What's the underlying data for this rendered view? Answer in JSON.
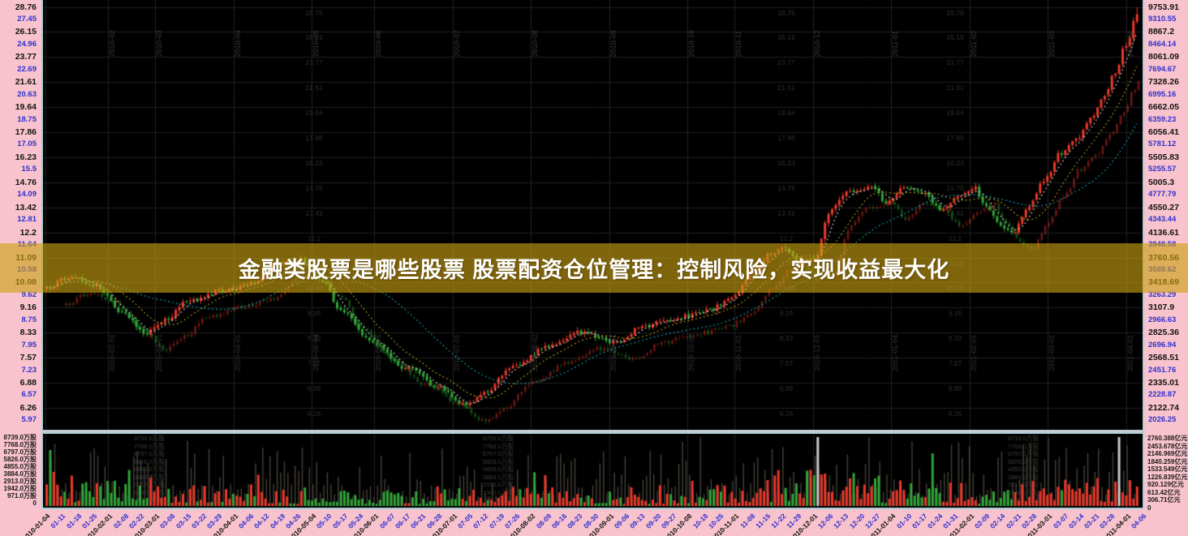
{
  "banner": {
    "text": "金融类股票是哪些股票 股票配资仓位管理：控制风险，实现收益最大化",
    "bg_color": "#cba211",
    "text_color": "#ffffff"
  },
  "colors": {
    "background_pink": "#f8c3cd",
    "panel_black": "#000000",
    "panel_border_blue": "#a9cdd9",
    "candle_up_red": "#e8382a",
    "candle_down_green": "#2fa436",
    "ma_short_white": "#e2e2e2",
    "ma_mid_yellow": "#bfae1e",
    "ma_long_cyan": "#19aec0",
    "axis_label_black": "#141414",
    "axis_label_blue": "#3030cf",
    "grid_line": "#1f1f1f"
  },
  "left_price_axis": {
    "labels": [
      "28.76",
      "27.45",
      "26.15",
      "24.96",
      "23.77",
      "22.69",
      "21.61",
      "20.63",
      "19.64",
      "18.75",
      "17.86",
      "17.05",
      "16.23",
      "15.5",
      "14.76",
      "14.09",
      "13.42",
      "12.81",
      "12.2",
      "11.64",
      "11.09",
      "10.58",
      "10.08",
      "9.62",
      "9.16",
      "8.75",
      "8.33",
      "7.95",
      "7.57",
      "7.23",
      "6.88",
      "6.57",
      "6.26",
      "5.97"
    ]
  },
  "right_price_axis": {
    "labels": [
      "9753.91",
      "9310.55",
      "8867.2",
      "8464.14",
      "8061.09",
      "7694.67",
      "7328.26",
      "6995.16",
      "6662.05",
      "6359.23",
      "6056.41",
      "5781.12",
      "5505.83",
      "5255.57",
      "5005.3",
      "4777.79",
      "4550.27",
      "4343.44",
      "4136.61",
      "3948.58",
      "3760.56",
      "3589.62",
      "3418.69",
      "3263.29",
      "3107.9",
      "2966.63",
      "2825.36",
      "2696.94",
      "2568.51",
      "2451.76",
      "2335.01",
      "2228.87",
      "2122.74",
      "2026.25"
    ]
  },
  "volume_left_axis": {
    "labels": [
      "8739.0万股",
      "7768.0万股",
      "6797.0万股",
      "5826.0万股",
      "4855.0万股",
      "3884.0万股",
      "2913.0万股",
      "1942.0万股",
      "971.0万股",
      "0"
    ]
  },
  "volume_right_axis": {
    "labels": [
      "2760.388亿元",
      "2453.678亿元",
      "2146.969亿元",
      "1840.259亿元",
      "1533.549亿元",
      "1226.839亿元",
      "920.129亿元",
      "613.42亿元",
      "306.71亿元",
      "0"
    ]
  },
  "date_axis": {
    "labels": [
      {
        "t": "2010-01-04",
        "m": true
      },
      {
        "t": "01-11",
        "m": false
      },
      {
        "t": "01-18",
        "m": false
      },
      {
        "t": "01-25",
        "m": false
      },
      {
        "t": "2010-02-01",
        "m": true
      },
      {
        "t": "02-08",
        "m": false
      },
      {
        "t": "02-22",
        "m": false
      },
      {
        "t": "2010-03-01",
        "m": true
      },
      {
        "t": "03-08",
        "m": false
      },
      {
        "t": "03-15",
        "m": false
      },
      {
        "t": "03-22",
        "m": false
      },
      {
        "t": "03-29",
        "m": false
      },
      {
        "t": "2010-04-01",
        "m": true
      },
      {
        "t": "04-06",
        "m": false
      },
      {
        "t": "04-12",
        "m": false
      },
      {
        "t": "04-19",
        "m": false
      },
      {
        "t": "04-26",
        "m": false
      },
      {
        "t": "2010-05-04",
        "m": true
      },
      {
        "t": "05-10",
        "m": false
      },
      {
        "t": "05-17",
        "m": false
      },
      {
        "t": "05-24",
        "m": false
      },
      {
        "t": "2010-06-01",
        "m": true
      },
      {
        "t": "06-07",
        "m": false
      },
      {
        "t": "06-17",
        "m": false
      },
      {
        "t": "06-21",
        "m": false
      },
      {
        "t": "06-28",
        "m": false
      },
      {
        "t": "2010-07-01",
        "m": true
      },
      {
        "t": "07-05",
        "m": false
      },
      {
        "t": "07-12",
        "m": false
      },
      {
        "t": "07-19",
        "m": false
      },
      {
        "t": "07-26",
        "m": false
      },
      {
        "t": "2010-08-02",
        "m": true
      },
      {
        "t": "08-09",
        "m": false
      },
      {
        "t": "08-16",
        "m": false
      },
      {
        "t": "08-23",
        "m": false
      },
      {
        "t": "08-30",
        "m": false
      },
      {
        "t": "2010-09-01",
        "m": true
      },
      {
        "t": "09-06",
        "m": false
      },
      {
        "t": "09-13",
        "m": false
      },
      {
        "t": "09-20",
        "m": false
      },
      {
        "t": "09-27",
        "m": false
      },
      {
        "t": "2010-10-08",
        "m": true
      },
      {
        "t": "10-18",
        "m": false
      },
      {
        "t": "10-25",
        "m": false
      },
      {
        "t": "2010-11-01",
        "m": true
      },
      {
        "t": "11-08",
        "m": false
      },
      {
        "t": "11-15",
        "m": false
      },
      {
        "t": "11-22",
        "m": false
      },
      {
        "t": "11-29",
        "m": false
      },
      {
        "t": "2010-12-01",
        "m": true
      },
      {
        "t": "12-06",
        "m": false
      },
      {
        "t": "12-13",
        "m": false
      },
      {
        "t": "12-20",
        "m": false
      },
      {
        "t": "12-27",
        "m": false
      },
      {
        "t": "2011-01-04",
        "m": true
      },
      {
        "t": "01-10",
        "m": false
      },
      {
        "t": "01-17",
        "m": false
      },
      {
        "t": "01-24",
        "m": false
      },
      {
        "t": "01-31",
        "m": false
      },
      {
        "t": "2011-02-01",
        "m": true
      },
      {
        "t": "02-09",
        "m": false
      },
      {
        "t": "02-14",
        "m": false
      },
      {
        "t": "02-21",
        "m": false
      },
      {
        "t": "02-28",
        "m": false
      },
      {
        "t": "2011-03-01",
        "m": true
      },
      {
        "t": "03-07",
        "m": false
      },
      {
        "t": "03-14",
        "m": false
      },
      {
        "t": "03-21",
        "m": false
      },
      {
        "t": "03-28",
        "m": false
      },
      {
        "t": "2011-04-01",
        "m": true
      },
      {
        "t": "04-06",
        "m": false
      }
    ]
  },
  "ghost_labels": {
    "top_months": [
      "2010-02",
      "2010-03",
      "2010-04",
      "2010-05",
      "2010-06",
      "2010-07",
      "2010-08",
      "2010-09",
      "2010-10",
      "2010-11",
      "2010-12",
      "2011-01",
      "2011-02",
      "2011-03",
      "2011-04"
    ],
    "mid_dates": [
      "2010-02-01",
      "2010-03-01",
      "2010-04-01",
      "2010-05-04",
      "2010-06-01",
      "2010-07-01",
      "2010-08-02",
      "2010-09-01",
      "2010-10-08",
      "2010-11-01",
      "2010-12-01",
      "2011-01-04",
      "2011-02-01",
      "2011-03-01",
      "2011-04-01"
    ],
    "price_column": [
      "28.76",
      "26.15",
      "23.77",
      "21.61",
      "19.64",
      "17.86",
      "16.23",
      "14.76",
      "13.42",
      "12.2",
      "11.09",
      "10.08",
      "9.16",
      "8.33",
      "7.57",
      "6.88",
      "6.26"
    ],
    "volume_column": [
      "8739.0万股",
      "7768.0万股",
      "6797.0万股",
      "5826.0万股",
      "4855.0万股",
      "3884.0万股",
      "2913.0万股",
      "1942.0万股",
      "971.0万股"
    ]
  },
  "chart_data": {
    "type": "candlestick",
    "title": "",
    "date_range": [
      "2010-01-04",
      "2011-04-06"
    ],
    "left_axis_range": [
      5.97,
      28.76
    ],
    "right_axis_range": [
      2026.25,
      9753.91
    ],
    "scale": "log",
    "period_low": 6.26,
    "period_high": 28.76,
    "volume_axis_max_shares": "8739.0万股",
    "volume_axis_max_amount": "2760.388亿元",
    "grid": true,
    "series": [
      {
        "name": "candles-main",
        "type": "ohlc-path-anchors",
        "anchors": [
          [
            0.0,
            9.9
          ],
          [
            0.02,
            10.3
          ],
          [
            0.045,
            10.0
          ],
          [
            0.07,
            9.0
          ],
          [
            0.09,
            8.35
          ],
          [
            0.11,
            8.8
          ],
          [
            0.13,
            9.45
          ],
          [
            0.16,
            9.8
          ],
          [
            0.19,
            10.1
          ],
          [
            0.212,
            10.85
          ],
          [
            0.232,
            11.05
          ],
          [
            0.25,
            10.3
          ],
          [
            0.27,
            9.1
          ],
          [
            0.3,
            8.0
          ],
          [
            0.33,
            7.3
          ],
          [
            0.36,
            6.8
          ],
          [
            0.385,
            6.32
          ],
          [
            0.4,
            6.62
          ],
          [
            0.43,
            7.4
          ],
          [
            0.46,
            7.9
          ],
          [
            0.49,
            8.35
          ],
          [
            0.52,
            8.05
          ],
          [
            0.55,
            8.6
          ],
          [
            0.58,
            8.85
          ],
          [
            0.61,
            9.15
          ],
          [
            0.63,
            9.6
          ],
          [
            0.65,
            10.6
          ],
          [
            0.663,
            11.3
          ],
          [
            0.675,
            11.55
          ],
          [
            0.69,
            10.9
          ],
          [
            0.705,
            11.1
          ],
          [
            0.718,
            13.2
          ],
          [
            0.735,
            14.2
          ],
          [
            0.755,
            14.55
          ],
          [
            0.77,
            13.7
          ],
          [
            0.79,
            14.6
          ],
          [
            0.805,
            14.1
          ],
          [
            0.82,
            13.3
          ],
          [
            0.835,
            13.9
          ],
          [
            0.85,
            14.5
          ],
          [
            0.862,
            13.5
          ],
          [
            0.875,
            12.6
          ],
          [
            0.886,
            12.2
          ],
          [
            0.9,
            13.4
          ],
          [
            0.915,
            14.9
          ],
          [
            0.93,
            16.5
          ],
          [
            0.945,
            17.5
          ],
          [
            0.958,
            18.8
          ],
          [
            0.97,
            20.5
          ],
          [
            0.98,
            22.5
          ],
          [
            0.99,
            25.0
          ],
          [
            1.0,
            28.0
          ]
        ]
      },
      {
        "name": "ma-short",
        "color_key": "ma_short_white",
        "window": 5
      },
      {
        "name": "ma-mid",
        "color_key": "ma_mid_yellow",
        "window": 13
      },
      {
        "name": "ma-long",
        "color_key": "ma_long_cyan",
        "window": 34
      },
      {
        "name": "volume-bars",
        "anchors_activity": [
          [
            0,
            0.85
          ],
          [
            0.06,
            1.0
          ],
          [
            0.12,
            0.7
          ],
          [
            0.2,
            0.55
          ],
          [
            0.28,
            0.42
          ],
          [
            0.36,
            0.5
          ],
          [
            0.44,
            0.48
          ],
          [
            0.5,
            0.42
          ],
          [
            0.57,
            0.55
          ],
          [
            0.63,
            0.75
          ],
          [
            0.68,
            1.0
          ],
          [
            0.72,
            0.85
          ],
          [
            0.76,
            0.75
          ],
          [
            0.8,
            0.6
          ],
          [
            0.85,
            0.55
          ],
          [
            0.88,
            0.5
          ],
          [
            0.92,
            0.8
          ],
          [
            0.96,
            0.85
          ],
          [
            1,
            0.9
          ]
        ]
      }
    ]
  }
}
